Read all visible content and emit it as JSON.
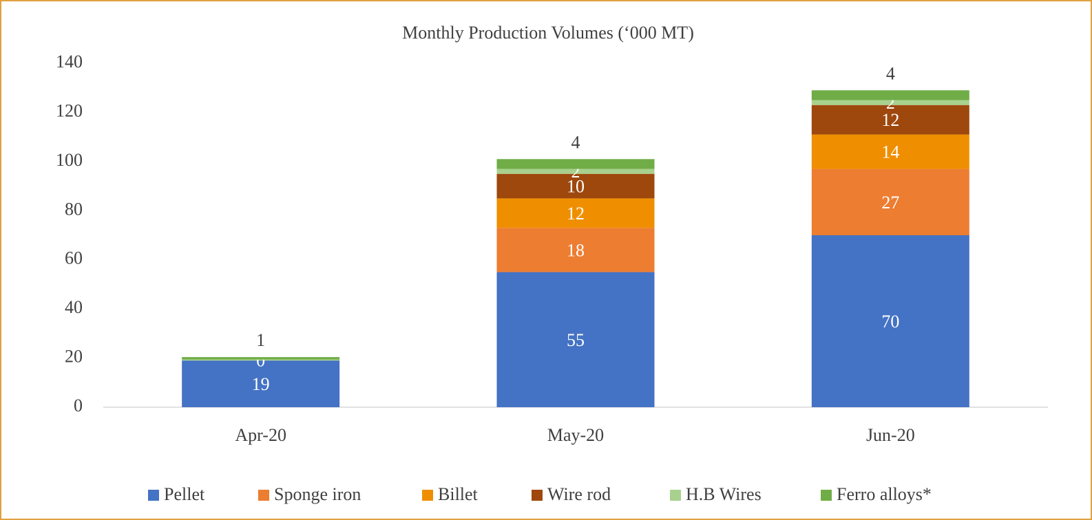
{
  "chart_data": {
    "type": "stacked_bar",
    "title": "Monthly Production Volumes (‘000 MT)",
    "categories": [
      "Apr-20",
      "May-20",
      "Jun-20"
    ],
    "series": [
      {
        "name": "Pellet",
        "color": "#4472c4",
        "values": [
          19,
          55,
          70
        ]
      },
      {
        "name": "Sponge iron",
        "color": "#ed7d31",
        "values": [
          null,
          18,
          27
        ]
      },
      {
        "name": "Billet",
        "color": "#ef8f00",
        "values": [
          null,
          12,
          14
        ]
      },
      {
        "name": "Wire rod",
        "color": "#9e480e",
        "values": [
          null,
          10,
          12
        ]
      },
      {
        "name": "H.B Wires",
        "color": "#a9d18e",
        "values": [
          0.4,
          2,
          2
        ],
        "value_labels": [
          "0",
          "2",
          "2"
        ]
      },
      {
        "name": "Ferro alloys*",
        "color": "#70ad47",
        "values": [
          1,
          4,
          4
        ]
      }
    ],
    "ylim": [
      0,
      140
    ],
    "yticks": [
      0,
      20,
      40,
      60,
      80,
      100,
      120,
      140
    ],
    "grid": false,
    "legend": "bottom"
  }
}
